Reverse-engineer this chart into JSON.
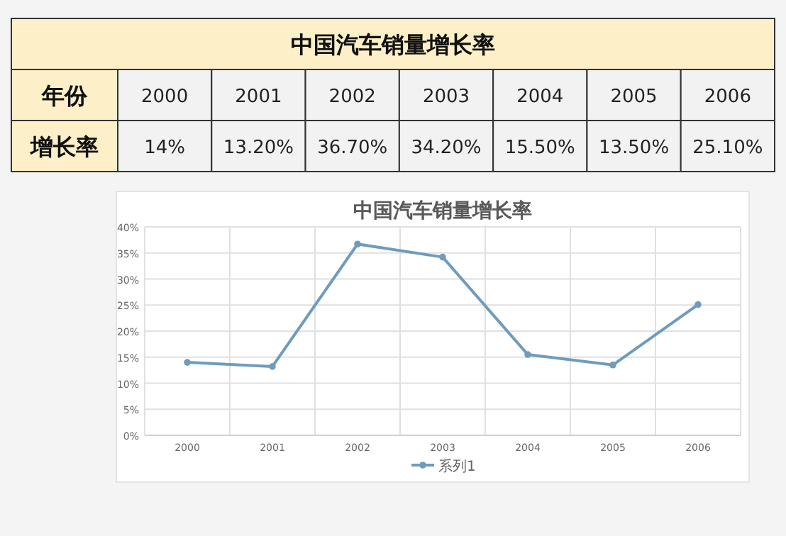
{
  "chart_data": {
    "type": "line",
    "title": "中国汽车销量增长率",
    "annotations": [
      "中国汽车销量增长率",
      "年份",
      "增长率"
    ],
    "categories": [
      "2000",
      "2001",
      "2002",
      "2003",
      "2004",
      "2005",
      "2006"
    ],
    "series": [
      {
        "name": "系列1",
        "color": "#6f9bbd",
        "values": [
          14,
          13.2,
          36.7,
          34.2,
          15.5,
          13.5,
          25.1
        ],
        "value_labels": [
          "14%",
          "13.20%",
          "36.70%",
          "34.20%",
          "15.50%",
          "13.50%",
          "25.10%"
        ]
      }
    ],
    "ylim": [
      0,
      40
    ],
    "yticks": [
      {
        "value": 0,
        "label": "0%"
      },
      {
        "value": 5,
        "label": "5%"
      },
      {
        "value": 10,
        "label": "10%"
      },
      {
        "value": 15,
        "label": "15%"
      },
      {
        "value": 20,
        "label": "20%"
      },
      {
        "value": 25,
        "label": "25%"
      },
      {
        "value": 30,
        "label": "30%"
      },
      {
        "value": 35,
        "label": "35%"
      },
      {
        "value": 40,
        "label": "40%"
      }
    ],
    "grid": true,
    "legend": "bottom",
    "marker": "circle",
    "line_style": "solid"
  }
}
